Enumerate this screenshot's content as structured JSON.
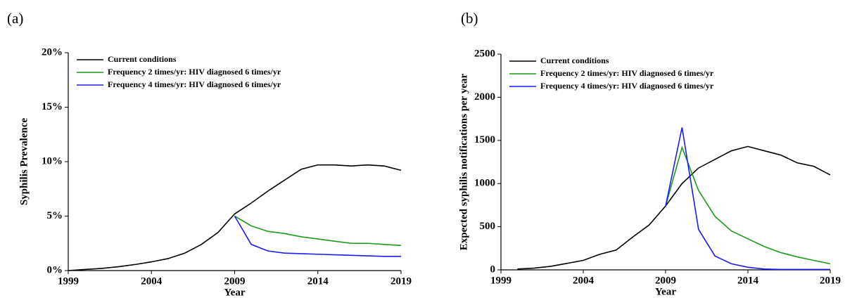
{
  "chart_data": [
    {
      "type": "line",
      "label": "(a)",
      "x_label": "Year",
      "y_label": "Syphilis Prevalence",
      "x": [
        1999,
        2000,
        2001,
        2002,
        2003,
        2004,
        2005,
        2006,
        2007,
        2008,
        2009,
        2010,
        2011,
        2012,
        2013,
        2014,
        2015,
        2016,
        2017,
        2018,
        2019
      ],
      "series": [
        {
          "name": "Current conditions",
          "color": "#000000",
          "values": [
            0,
            0.1,
            0.2,
            0.35,
            0.55,
            0.8,
            1.1,
            1.6,
            2.4,
            3.5,
            5.2,
            6.2,
            7.3,
            8.3,
            9.3,
            9.7,
            9.7,
            9.6,
            9.7,
            9.6,
            9.2
          ]
        },
        {
          "name": "Frequency 2 times/yr: HIV diagnosed 6 times/yr",
          "color": "#1a9a1a",
          "values": [
            null,
            null,
            null,
            null,
            null,
            null,
            null,
            null,
            null,
            null,
            5.0,
            4.1,
            3.6,
            3.4,
            3.1,
            2.9,
            2.7,
            2.5,
            2.5,
            2.4,
            2.3
          ]
        },
        {
          "name": "Frequency 4 times/yr: HIV diagnosed 6 times/yr",
          "color": "#1a1aff",
          "values": [
            null,
            null,
            null,
            null,
            null,
            null,
            null,
            null,
            null,
            null,
            5.0,
            2.4,
            1.8,
            1.6,
            1.55,
            1.5,
            1.45,
            1.4,
            1.35,
            1.3,
            1.3
          ]
        }
      ],
      "xlim": [
        1999,
        2019
      ],
      "xticks": [
        1999,
        2004,
        2009,
        2014,
        2019
      ],
      "ylim": [
        0,
        20
      ],
      "yticks": [
        {
          "value": 0,
          "label": "0%"
        },
        {
          "value": 5,
          "label": "5%"
        },
        {
          "value": 10,
          "label": "10%"
        },
        {
          "value": 15,
          "label": "15%"
        },
        {
          "value": 20,
          "label": "20%"
        }
      ],
      "legend": "upper left"
    },
    {
      "type": "line",
      "label": "(b)",
      "x_label": "Year",
      "y_label": "Expected syphilis notifications per year",
      "x": [
        2000,
        2001,
        2002,
        2003,
        2004,
        2005,
        2006,
        2007,
        2008,
        2009,
        2010,
        2011,
        2012,
        2013,
        2014,
        2015,
        2016,
        2017,
        2018,
        2019
      ],
      "series": [
        {
          "name": "Current conditions",
          "color": "#000000",
          "values": [
            10,
            20,
            40,
            75,
            110,
            180,
            230,
            380,
            520,
            740,
            1000,
            1180,
            1280,
            1380,
            1430,
            1380,
            1330,
            1240,
            1200,
            1100
          ]
        },
        {
          "name": "Frequency 2 times/yr: HIV diagnosed 6 times/yr",
          "color": "#1a9a1a",
          "values": [
            null,
            null,
            null,
            null,
            null,
            null,
            null,
            null,
            null,
            740,
            1420,
            920,
            620,
            450,
            360,
            270,
            200,
            150,
            110,
            70
          ]
        },
        {
          "name": "Frequency 4 times/yr: HIV diagnosed 6 times/yr",
          "color": "#1a1aff",
          "values": [
            null,
            null,
            null,
            null,
            null,
            null,
            null,
            null,
            null,
            740,
            1650,
            470,
            160,
            70,
            30,
            10,
            5,
            5,
            5,
            5
          ]
        }
      ],
      "xlim": [
        1999,
        2019
      ],
      "xticks": [
        1999,
        2004,
        2009,
        2014,
        2019
      ],
      "ylim": [
        0,
        2500
      ],
      "yticks": [
        0,
        500,
        1000,
        1500,
        2000,
        2500
      ],
      "legend": "upper left"
    }
  ]
}
